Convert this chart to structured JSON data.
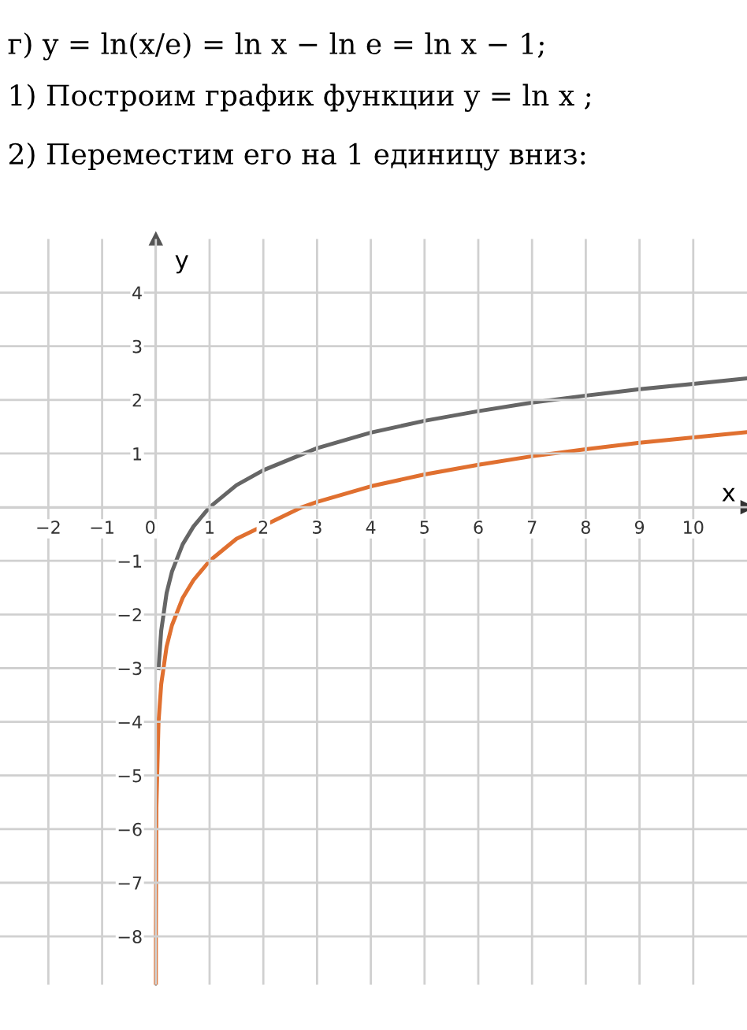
{
  "chart_data": {
    "type": "line",
    "annotations": [
      "г) y = ln(x/e) = ln x − ln e = ln x − 1;",
      "1) Построим график функции y = ln x ;",
      "2) Переместим его на 1 единицу вниз:"
    ],
    "xlabel": "x",
    "ylabel": "y",
    "series": [
      {
        "color": "#666666",
        "x": [
          0.05,
          0.1,
          0.2,
          0.3,
          0.5,
          0.7,
          1,
          1.5,
          2,
          3,
          4,
          5,
          6,
          7,
          8,
          9,
          10,
          11
        ],
        "values": [
          -3.0,
          -2.3,
          -1.6,
          -1.2,
          -0.69,
          -0.36,
          0,
          0.41,
          0.69,
          1.1,
          1.39,
          1.61,
          1.79,
          1.95,
          2.08,
          2.2,
          2.3,
          2.4
        ]
      },
      {
        "color": "#e07030",
        "x": [
          0.00037,
          0.001,
          0.01,
          0.05,
          0.1,
          0.2,
          0.3,
          0.5,
          0.7,
          1,
          1.5,
          2.72,
          3,
          4,
          5,
          6,
          7,
          8,
          9,
          10,
          11
        ],
        "values": [
          -8.9,
          -7.9,
          -5.6,
          -4.0,
          -3.3,
          -2.6,
          -2.2,
          -1.69,
          -1.36,
          -1,
          -0.59,
          0,
          0.1,
          0.39,
          0.61,
          0.79,
          0.95,
          1.08,
          1.2,
          1.3,
          1.4
        ]
      }
    ],
    "xlim": [
      -2.9,
      11.0
    ],
    "ylim": [
      -8.9,
      5.0
    ],
    "xticks": [
      -2,
      -1,
      0,
      1,
      2,
      3,
      4,
      5,
      6,
      7,
      8,
      9,
      10
    ],
    "yticks": [
      -8,
      -7,
      -6,
      -5,
      -4,
      -3,
      -2,
      -1,
      {
        "value": 0,
        "label": null
      },
      1,
      2,
      3,
      4
    ],
    "grid": true,
    "marker": "none",
    "line_style": "solid"
  }
}
